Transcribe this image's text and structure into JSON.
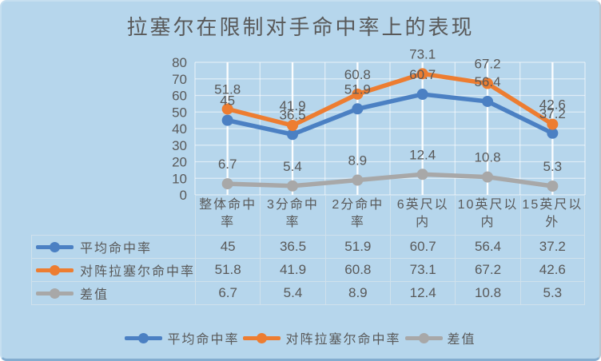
{
  "colors": {
    "background": "#b6d6ec",
    "text": "#595959",
    "grid_major": "rgba(255,255,255,0.95)",
    "grid_minor": "rgba(255,255,255,0.55)"
  },
  "chart_data": {
    "type": "line",
    "title": "拉塞尔在限制对手命中率上的表现",
    "categories": [
      "整体命中率",
      "3分命中率",
      "2分命中率",
      "6英尺以内",
      "10英尺以内",
      "15英尺以外"
    ],
    "series": [
      {
        "name": "平均命中率",
        "color": "#4b80c3",
        "values": [
          45,
          36.5,
          51.9,
          60.7,
          56.4,
          37.2
        ]
      },
      {
        "name": "对阵拉塞尔命中率",
        "color": "#ed7d31",
        "values": [
          51.8,
          41.9,
          60.8,
          73.1,
          67.2,
          42.6
        ]
      },
      {
        "name": "差值",
        "color": "#a8a8a8",
        "values": [
          6.7,
          5.4,
          8.9,
          12.4,
          10.8,
          5.3
        ]
      }
    ],
    "ylim": [
      0,
      80
    ],
    "yticks": [
      0,
      10,
      20,
      30,
      40,
      50,
      60,
      70,
      80
    ],
    "grid": true,
    "legend_position": "bottom",
    "data_labels_shown": true,
    "data_table_shown": true,
    "xlabel": "",
    "ylabel": ""
  }
}
